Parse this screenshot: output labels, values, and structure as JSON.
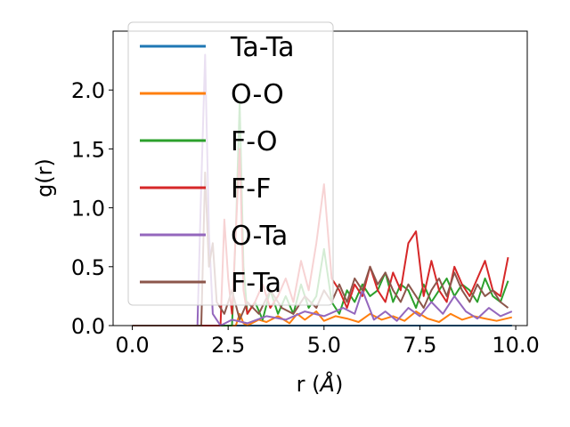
{
  "chart_data": {
    "type": "line",
    "title": "",
    "xlabel": "r (",
    "xlabel_unit": "Å",
    "xlabel_close": ")",
    "ylabel": "g(r)",
    "xlim": [
      -0.5,
      10.3
    ],
    "ylim": [
      0,
      2.5
    ],
    "xticks": [
      0.0,
      2.5,
      5.0,
      7.5,
      10.0
    ],
    "xtick_labels": [
      "0.0",
      "2.5",
      "5.0",
      "7.5",
      "10.0"
    ],
    "yticks": [
      0.0,
      0.5,
      1.0,
      1.5,
      2.0
    ],
    "ytick_labels": [
      "0.0",
      "0.5",
      "1.0",
      "1.5",
      "2.0"
    ],
    "grid": false,
    "legend_position": "top-left",
    "series": [
      {
        "name": "Ta-Ta",
        "color": "#1f77b4",
        "x": [
          0,
          1.8,
          9.9
        ],
        "y": [
          0,
          0,
          0
        ]
      },
      {
        "name": "O-O",
        "color": "#ff7f0e",
        "x": [
          0,
          2.7,
          2.8,
          2.9,
          3.0,
          3.3,
          3.5,
          3.8,
          4.1,
          4.3,
          4.5,
          4.8,
          5.0,
          5.3,
          5.6,
          5.9,
          6.2,
          6.5,
          6.8,
          7.1,
          7.4,
          7.7,
          8.0,
          8.3,
          8.6,
          8.9,
          9.2,
          9.5,
          9.9
        ],
        "y": [
          0,
          0,
          0.1,
          0.02,
          0,
          0.05,
          0.03,
          0.08,
          0.02,
          0.1,
          0.05,
          0.12,
          0.04,
          0.08,
          0.06,
          0.03,
          0.1,
          0.05,
          0.08,
          0.04,
          0.12,
          0.06,
          0.03,
          0.1,
          0.05,
          0.08,
          0.06,
          0.04,
          0.07
        ]
      },
      {
        "name": "F-O",
        "color": "#2ca02c",
        "x": [
          0,
          2.6,
          2.7,
          2.8,
          2.9,
          3.0,
          3.2,
          3.4,
          3.6,
          3.8,
          4.0,
          4.2,
          4.4,
          4.6,
          4.8,
          5.0,
          5.2,
          5.4,
          5.6,
          5.8,
          6.0,
          6.2,
          6.4,
          6.6,
          6.8,
          7.0,
          7.2,
          7.4,
          7.6,
          7.8,
          8.0,
          8.2,
          8.4,
          8.6,
          8.8,
          9.0,
          9.2,
          9.4,
          9.6,
          9.8
        ],
        "y": [
          0,
          0,
          0.8,
          1.9,
          0.5,
          0.1,
          0.2,
          0.05,
          0.3,
          0.1,
          0.25,
          0.1,
          0.35,
          0.15,
          0.25,
          0.65,
          0.2,
          0.1,
          0.3,
          0.2,
          0.35,
          0.25,
          0.3,
          0.45,
          0.2,
          0.35,
          0.3,
          0.15,
          0.35,
          0.2,
          0.3,
          0.4,
          0.25,
          0.35,
          0.3,
          0.2,
          0.4,
          0.25,
          0.2,
          0.38
        ]
      },
      {
        "name": "F-F",
        "color": "#d62728",
        "x": [
          0,
          2.3,
          2.4,
          2.5,
          2.6,
          2.7,
          2.8,
          2.9,
          3.0,
          3.2,
          3.4,
          3.6,
          3.8,
          4.0,
          4.2,
          4.4,
          4.6,
          4.8,
          5.0,
          5.2,
          5.4,
          5.6,
          5.8,
          6.0,
          6.2,
          6.4,
          6.6,
          6.8,
          7.0,
          7.2,
          7.4,
          7.6,
          7.8,
          8.0,
          8.2,
          8.4,
          8.6,
          8.8,
          9.0,
          9.2,
          9.4,
          9.6,
          9.8
        ],
        "y": [
          0,
          0,
          0.9,
          0.4,
          0.1,
          0.8,
          1.5,
          0.3,
          0.1,
          0.2,
          0.35,
          0.15,
          0.25,
          0.4,
          0.2,
          0.55,
          0.3,
          0.7,
          1.2,
          0.4,
          0.3,
          0.15,
          0.35,
          0.25,
          0.5,
          0.3,
          0.2,
          0.45,
          0.3,
          0.7,
          0.8,
          0.25,
          0.55,
          0.3,
          0.2,
          0.5,
          0.35,
          0.25,
          0.4,
          0.55,
          0.3,
          0.25,
          0.58
        ]
      },
      {
        "name": "O-Ta",
        "color": "#9467bd",
        "x": [
          0,
          1.7,
          1.8,
          1.9,
          2.0,
          2.1,
          2.3,
          2.6,
          3.0,
          3.5,
          4.0,
          4.5,
          5.0,
          5.5,
          5.8,
          6.0,
          6.3,
          6.6,
          6.9,
          7.2,
          7.5,
          7.8,
          8.1,
          8.4,
          8.7,
          9.0,
          9.3,
          9.6,
          9.9
        ],
        "y": [
          0,
          0,
          1.2,
          2.3,
          0.8,
          0.1,
          0,
          0.05,
          0.02,
          0.08,
          0.05,
          0.12,
          0.08,
          0.15,
          0.1,
          0.3,
          0.05,
          0.12,
          0.04,
          0.15,
          0.08,
          0.2,
          0.1,
          0.25,
          0.12,
          0.06,
          0.15,
          0.08,
          0.12
        ]
      },
      {
        "name": "F-Ta",
        "color": "#8c564b",
        "x": [
          0,
          1.8,
          1.9,
          2.0,
          2.1,
          2.2,
          2.4,
          2.6,
          2.8,
          3.0,
          3.3,
          3.6,
          3.9,
          4.2,
          4.5,
          4.8,
          5.0,
          5.2,
          5.4,
          5.6,
          5.8,
          6.0,
          6.2,
          6.4,
          6.6,
          6.8,
          7.0,
          7.2,
          7.4,
          7.6,
          7.8,
          8.0,
          8.2,
          8.4,
          8.6,
          8.8,
          9.0,
          9.2,
          9.4,
          9.6,
          9.8
        ],
        "y": [
          0,
          0,
          1.3,
          0.5,
          0.7,
          0.2,
          0.1,
          0.3,
          0.05,
          0.2,
          0.1,
          0.3,
          0.15,
          0.1,
          0.25,
          0.15,
          0.3,
          0.2,
          0.35,
          0.2,
          0.4,
          0.3,
          0.5,
          0.35,
          0.45,
          0.3,
          0.2,
          0.35,
          0.25,
          0.15,
          0.3,
          0.4,
          0.25,
          0.45,
          0.3,
          0.2,
          0.35,
          0.25,
          0.3,
          0.2,
          0.15
        ]
      }
    ]
  }
}
